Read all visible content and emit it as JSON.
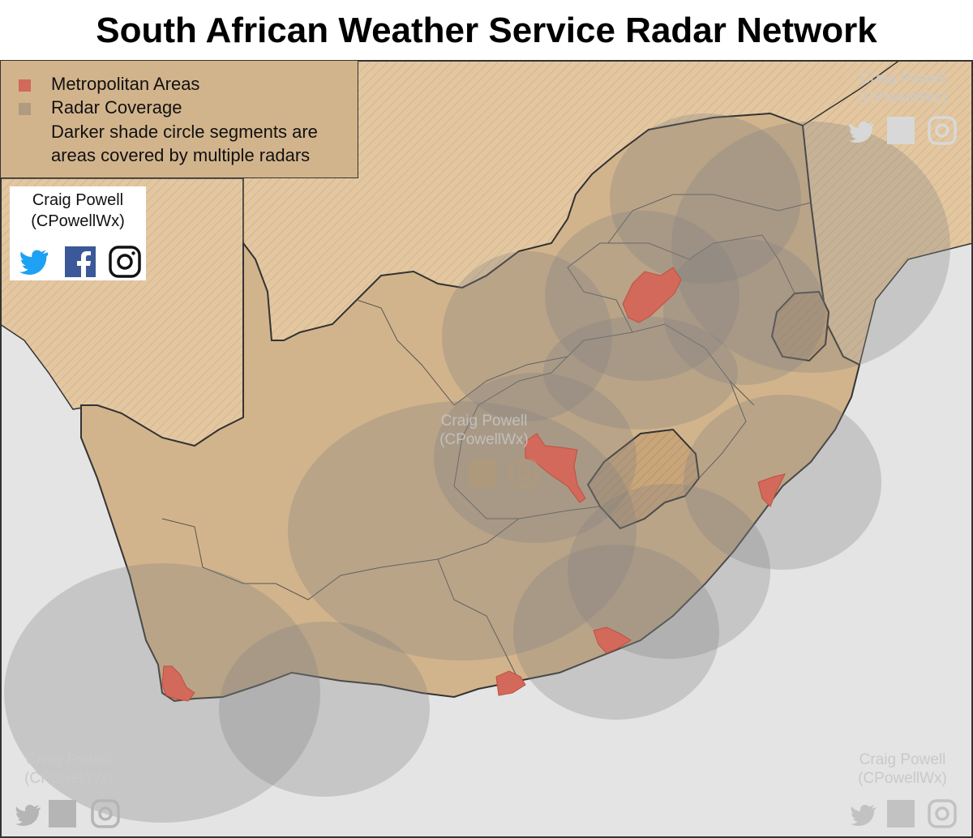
{
  "title": "South African Weather Service Radar Network",
  "colors": {
    "sea": "#e4e4e4",
    "south_africa": "#d2b48c",
    "neighbors": "#e2c7a1",
    "metro": "#d2695a",
    "coverage": "#808080",
    "border": "#333333"
  },
  "legend": {
    "metro_label": "Metropolitan Areas",
    "coverage_label": "Radar Coverage",
    "note_line1": "Darker shade circle segments are",
    "note_line2": "areas covered by multiple radars"
  },
  "credit": {
    "name": "Craig Powell",
    "handle": "(CPowellWx)",
    "icons": [
      "twitter-icon",
      "facebook-icon",
      "instagram-icon"
    ]
  },
  "watermarks": [
    {
      "name": "Craig Powell",
      "handle": "(CPowellWx)",
      "position": "top-right"
    },
    {
      "name": "Craig Powell",
      "handle": "(CPowellWx)",
      "position": "center"
    },
    {
      "name": "Craig Powell",
      "handle": "(CPowellWx)",
      "position": "bottom-left"
    },
    {
      "name": "Craig Powell",
      "handle": "(CPowellWx)",
      "position": "bottom-right"
    }
  ],
  "map": {
    "radar_count": 12,
    "metropolitan_area_count": 8
  }
}
